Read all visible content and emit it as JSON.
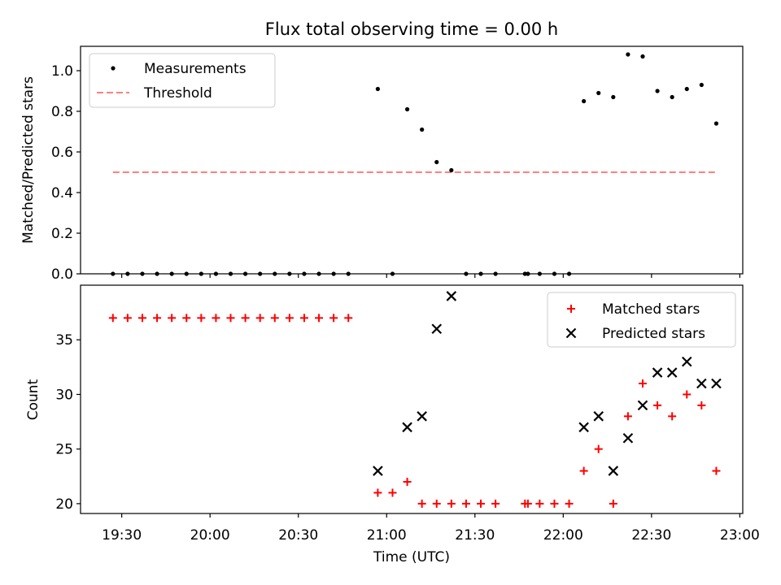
{
  "chart_data": [
    {
      "type": "scatter",
      "title": "Flux total observing time = 0.00 h",
      "xlabel": "",
      "ylabel": "Matched/Predicted stars",
      "ylim": [
        0,
        1.12
      ],
      "yticks": [
        0.0,
        0.2,
        0.4,
        0.6,
        0.8,
        1.0
      ],
      "ytick_labels": [
        "0.0",
        "0.2",
        "0.4",
        "0.6",
        "0.8",
        "1.0"
      ],
      "legend_position": "upper-left",
      "series": [
        {
          "name": "Measurements",
          "marker": "dot",
          "color": "#000000",
          "points": [
            [
              "19:27",
              0
            ],
            [
              "19:32",
              0
            ],
            [
              "19:37",
              0
            ],
            [
              "19:42",
              0
            ],
            [
              "19:47",
              0
            ],
            [
              "19:52",
              0
            ],
            [
              "19:57",
              0
            ],
            [
              "20:02",
              0
            ],
            [
              "20:07",
              0
            ],
            [
              "20:12",
              0
            ],
            [
              "20:17",
              0
            ],
            [
              "20:22",
              0
            ],
            [
              "20:27",
              0
            ],
            [
              "20:32",
              0
            ],
            [
              "20:37",
              0
            ],
            [
              "20:42",
              0
            ],
            [
              "20:47",
              0
            ],
            [
              "20:57",
              0.91
            ],
            [
              "21:02",
              0
            ],
            [
              "21:07",
              0.81
            ],
            [
              "21:12",
              0.71
            ],
            [
              "21:17",
              0.55
            ],
            [
              "21:22",
              0.51
            ],
            [
              "21:27",
              0
            ],
            [
              "21:32",
              0
            ],
            [
              "21:37",
              0
            ],
            [
              "21:47",
              0
            ],
            [
              "21:48",
              0
            ],
            [
              "21:52",
              0
            ],
            [
              "21:57",
              0
            ],
            [
              "22:02",
              0
            ],
            [
              "22:07",
              0.85
            ],
            [
              "22:12",
              0.89
            ],
            [
              "22:17",
              0.87
            ],
            [
              "22:22",
              1.08
            ],
            [
              "22:27",
              1.07
            ],
            [
              "22:32",
              0.9
            ],
            [
              "22:37",
              0.87
            ],
            [
              "22:42",
              0.91
            ],
            [
              "22:47",
              0.93
            ],
            [
              "22:52",
              0.74
            ]
          ]
        },
        {
          "name": "Threshold",
          "type": "line",
          "style": "dashed",
          "color": "#ff7f7f",
          "points": [
            [
              "19:27",
              0.5
            ],
            [
              "22:52",
              0.5
            ]
          ]
        }
      ]
    },
    {
      "type": "scatter",
      "xlabel": "Time (UTC)",
      "ylabel": "Count",
      "ylim": [
        19.1,
        40
      ],
      "yticks": [
        20,
        25,
        30,
        35
      ],
      "ytick_labels": [
        "20",
        "25",
        "30",
        "35"
      ],
      "xlim": [
        "19:16",
        "23:01"
      ],
      "xticks": [
        "19:30",
        "20:00",
        "20:30",
        "21:00",
        "21:30",
        "22:00",
        "22:30",
        "23:00"
      ],
      "legend_position": "upper-right",
      "series": [
        {
          "name": "Matched stars",
          "marker": "plus",
          "color": "#ff0000",
          "points": [
            [
              "19:27",
              37
            ],
            [
              "19:32",
              37
            ],
            [
              "19:37",
              37
            ],
            [
              "19:42",
              37
            ],
            [
              "19:47",
              37
            ],
            [
              "19:52",
              37
            ],
            [
              "19:57",
              37
            ],
            [
              "20:02",
              37
            ],
            [
              "20:07",
              37
            ],
            [
              "20:12",
              37
            ],
            [
              "20:17",
              37
            ],
            [
              "20:22",
              37
            ],
            [
              "20:27",
              37
            ],
            [
              "20:32",
              37
            ],
            [
              "20:37",
              37
            ],
            [
              "20:42",
              37
            ],
            [
              "20:47",
              37
            ],
            [
              "20:57",
              21
            ],
            [
              "21:02",
              21
            ],
            [
              "21:07",
              22
            ],
            [
              "21:12",
              20
            ],
            [
              "21:17",
              20
            ],
            [
              "21:22",
              20
            ],
            [
              "21:27",
              20
            ],
            [
              "21:32",
              20
            ],
            [
              "21:37",
              20
            ],
            [
              "21:47",
              20
            ],
            [
              "21:48",
              20
            ],
            [
              "21:52",
              20
            ],
            [
              "21:57",
              20
            ],
            [
              "22:02",
              20
            ],
            [
              "22:07",
              23
            ],
            [
              "22:12",
              25
            ],
            [
              "22:17",
              20
            ],
            [
              "22:22",
              28
            ],
            [
              "22:27",
              31
            ],
            [
              "22:32",
              29
            ],
            [
              "22:37",
              28
            ],
            [
              "22:42",
              30
            ],
            [
              "22:47",
              29
            ],
            [
              "22:52",
              23
            ]
          ]
        },
        {
          "name": "Predicted stars",
          "marker": "x",
          "color": "#000000",
          "points": [
            [
              "20:57",
              23
            ],
            [
              "21:07",
              27
            ],
            [
              "21:12",
              28
            ],
            [
              "21:17",
              36
            ],
            [
              "21:22",
              39
            ],
            [
              "22:07",
              27
            ],
            [
              "22:12",
              28
            ],
            [
              "22:17",
              23
            ],
            [
              "22:22",
              26
            ],
            [
              "22:27",
              29
            ],
            [
              "22:32",
              32
            ],
            [
              "22:37",
              32
            ],
            [
              "22:42",
              33
            ],
            [
              "22:47",
              31
            ],
            [
              "22:52",
              31
            ]
          ]
        }
      ]
    }
  ]
}
